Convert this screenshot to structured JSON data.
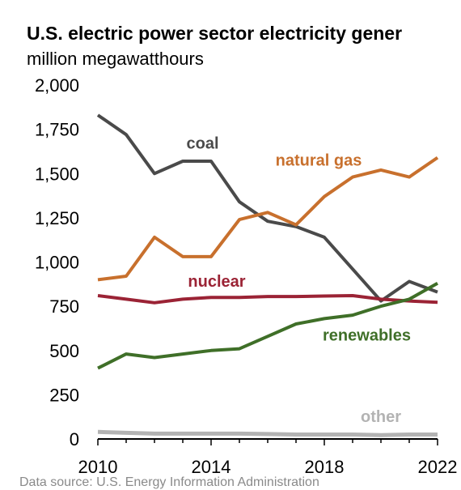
{
  "chart_data": {
    "type": "line",
    "title": "U.S. electric power sector electricity gener",
    "subtitle": "million megawatthours",
    "source": "Data source: U.S. Energy Information Administration",
    "x": [
      2010,
      2011,
      2012,
      2013,
      2014,
      2015,
      2016,
      2017,
      2018,
      2019,
      2020,
      2021,
      2022
    ],
    "xlim": [
      2010,
      2022
    ],
    "ylim": [
      0,
      2000
    ],
    "x_ticks": [
      2010,
      2014,
      2018,
      2022
    ],
    "y_ticks": [
      0,
      250,
      500,
      750,
      1000,
      1250,
      1500,
      1750,
      2000
    ],
    "y_tick_labels": [
      "0",
      "250",
      "500",
      "750",
      "1,000",
      "1,250",
      "1,500",
      "1,750",
      "2,000"
    ],
    "grid": false,
    "series": [
      {
        "name": "coal",
        "color": "#4a4a4a",
        "values": [
          1830,
          1720,
          1500,
          1570,
          1570,
          1340,
          1230,
          1200,
          1140,
          960,
          780,
          890,
          830
        ]
      },
      {
        "name": "natural gas",
        "color": "#c8702d",
        "values": [
          900,
          920,
          1140,
          1030,
          1030,
          1240,
          1280,
          1210,
          1370,
          1480,
          1520,
          1480,
          1590
        ]
      },
      {
        "name": "nuclear",
        "color": "#9b2335",
        "values": [
          810,
          790,
          770,
          790,
          800,
          800,
          805,
          805,
          808,
          810,
          790,
          780,
          772
        ]
      },
      {
        "name": "renewables",
        "color": "#3f6f28",
        "values": [
          400,
          480,
          460,
          480,
          500,
          510,
          580,
          650,
          680,
          700,
          750,
          790,
          880
        ]
      },
      {
        "name": "other",
        "color": "#b3b3b3",
        "values": [
          40,
          35,
          30,
          30,
          30,
          30,
          28,
          25,
          25,
          25,
          22,
          25,
          25
        ]
      }
    ]
  }
}
